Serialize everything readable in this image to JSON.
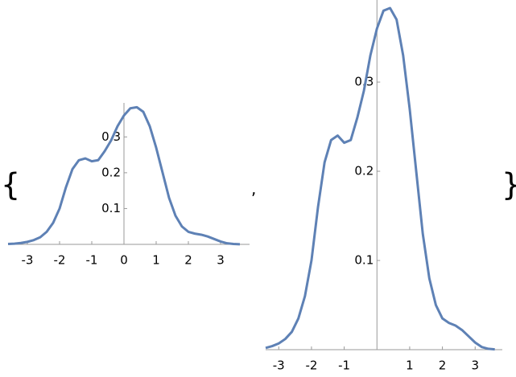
{
  "delimiters": {
    "open": "{",
    "separator": ",",
    "close": "}"
  },
  "chart_data": [
    {
      "type": "line",
      "x": [
        -3.6,
        -3.4,
        -3.2,
        -3.0,
        -2.8,
        -2.6,
        -2.4,
        -2.2,
        -2.0,
        -1.8,
        -1.6,
        -1.4,
        -1.2,
        -1.0,
        -0.8,
        -0.6,
        -0.4,
        -0.2,
        0.0,
        0.2,
        0.4,
        0.6,
        0.8,
        1.0,
        1.2,
        1.4,
        1.6,
        1.8,
        2.0,
        2.2,
        2.4,
        2.6,
        2.8,
        3.0,
        3.2,
        3.4,
        3.6
      ],
      "series": [
        {
          "color": "#5e81b5",
          "values": [
            0.001,
            0.002,
            0.004,
            0.007,
            0.012,
            0.02,
            0.035,
            0.06,
            0.1,
            0.16,
            0.21,
            0.235,
            0.24,
            0.232,
            0.235,
            0.26,
            0.29,
            0.33,
            0.36,
            0.38,
            0.383,
            0.37,
            0.33,
            0.27,
            0.2,
            0.13,
            0.08,
            0.05,
            0.035,
            0.03,
            0.027,
            0.022,
            0.015,
            0.008,
            0.003,
            0.001,
            0.0003
          ]
        }
      ],
      "xlim": [
        -3.6,
        3.9
      ],
      "ylim": [
        0,
        0.395
      ],
      "xticks": [
        -3,
        -2,
        -1,
        0,
        1,
        2,
        3
      ],
      "yticks": [
        0.1,
        0.2,
        0.3
      ]
    },
    {
      "type": "line",
      "x": [
        -3.4,
        -3.2,
        -3.0,
        -2.8,
        -2.6,
        -2.4,
        -2.2,
        -2.0,
        -1.8,
        -1.6,
        -1.4,
        -1.2,
        -1.0,
        -0.8,
        -0.6,
        -0.4,
        -0.2,
        0.0,
        0.2,
        0.4,
        0.6,
        0.8,
        1.0,
        1.2,
        1.4,
        1.6,
        1.8,
        2.0,
        2.2,
        2.4,
        2.6,
        2.8,
        3.0,
        3.2,
        3.4,
        3.6
      ],
      "series": [
        {
          "color": "#5e81b5",
          "values": [
            0.002,
            0.004,
            0.007,
            0.012,
            0.02,
            0.035,
            0.06,
            0.1,
            0.16,
            0.21,
            0.235,
            0.24,
            0.232,
            0.235,
            0.26,
            0.29,
            0.33,
            0.36,
            0.38,
            0.383,
            0.37,
            0.33,
            0.27,
            0.2,
            0.13,
            0.08,
            0.05,
            0.035,
            0.03,
            0.027,
            0.022,
            0.015,
            0.008,
            0.003,
            0.001,
            0.0003
          ]
        }
      ],
      "xlim": [
        -3.4,
        3.83
      ],
      "ylim": [
        0,
        0.392
      ],
      "xticks": [
        -3,
        -2,
        -1,
        1,
        2,
        3
      ],
      "yticks": [
        0.1,
        0.2,
        0.3
      ]
    }
  ]
}
